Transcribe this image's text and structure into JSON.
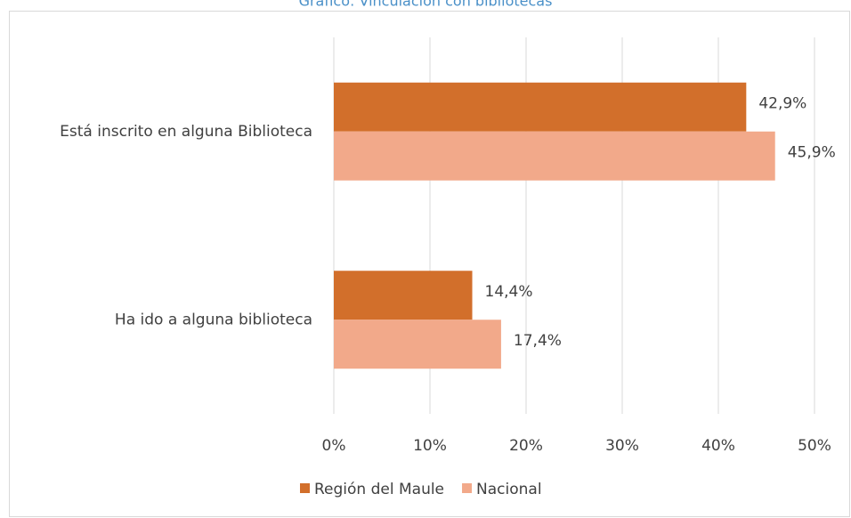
{
  "chart_data": {
    "type": "bar",
    "orientation": "horizontal",
    "title": "Gráfico: Vinculación con bibliotecas",
    "categories": [
      "Está inscrito en alguna Biblioteca",
      "Ha ido a alguna biblioteca"
    ],
    "series": [
      {
        "name": "Región del Maule",
        "color": "#d26f2b",
        "values": [
          42.9,
          14.4
        ],
        "value_labels": [
          "42,9%",
          "14,4%"
        ]
      },
      {
        "name": "Nacional",
        "color": "#f2a98a",
        "values": [
          45.9,
          17.4
        ],
        "value_labels": [
          "45,9%",
          "17,4%"
        ]
      }
    ],
    "xlim": [
      0,
      50
    ],
    "xticks": [
      {
        "value": 0,
        "label": "0%"
      },
      {
        "value": 10,
        "label": "10%"
      },
      {
        "value": 20,
        "label": "20%"
      },
      {
        "value": 30,
        "label": "30%"
      },
      {
        "value": 40,
        "label": "40%"
      },
      {
        "value": 50,
        "label": "50%"
      }
    ],
    "grid": true,
    "legend": "bottom"
  }
}
